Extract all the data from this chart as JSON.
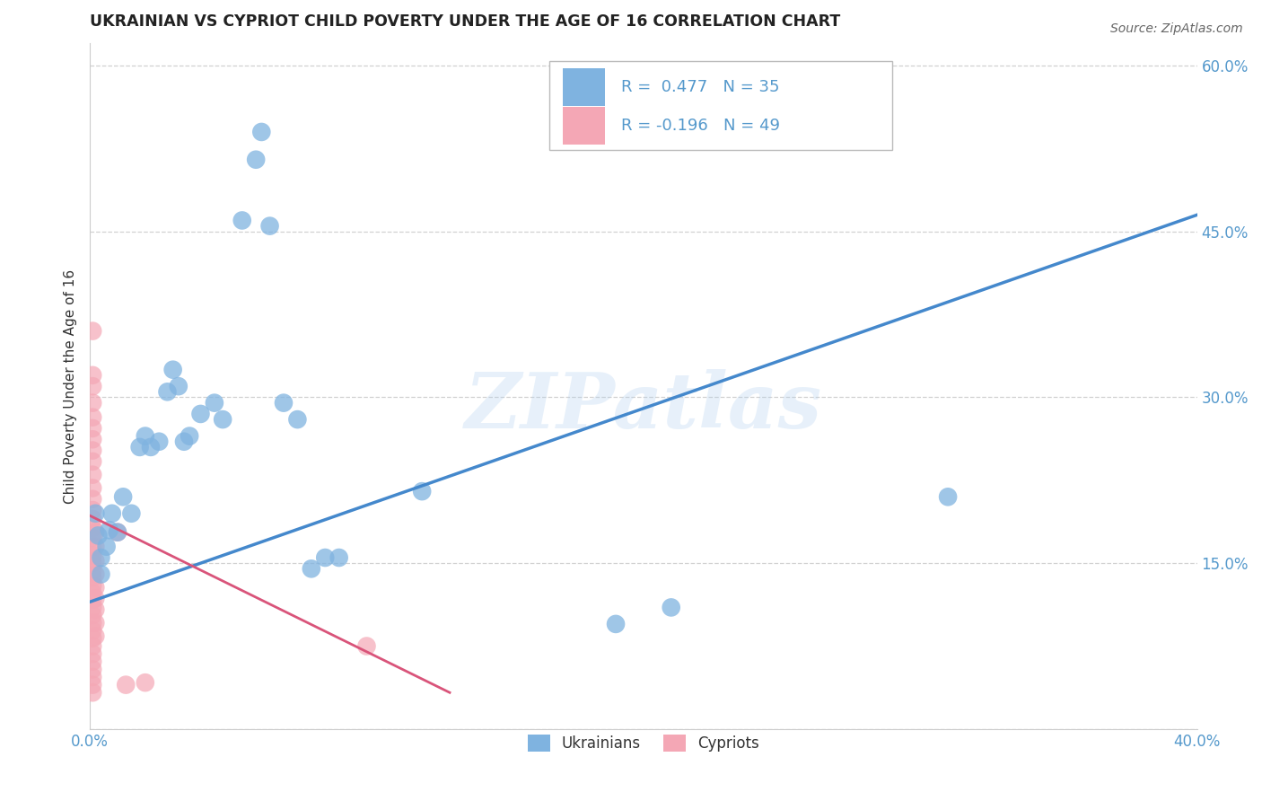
{
  "title": "UKRAINIAN VS CYPRIOT CHILD POVERTY UNDER THE AGE OF 16 CORRELATION CHART",
  "source": "Source: ZipAtlas.com",
  "ylabel": "Child Poverty Under the Age of 16",
  "xlim": [
    0.0,
    0.4
  ],
  "ylim": [
    0.0,
    0.62
  ],
  "x_ticks": [
    0.0,
    0.05,
    0.1,
    0.15,
    0.2,
    0.25,
    0.3,
    0.35,
    0.4
  ],
  "y_ticks": [
    0.0,
    0.15,
    0.3,
    0.45,
    0.6
  ],
  "grid_color": "#cccccc",
  "background_color": "#ffffff",
  "watermark": "ZIPatlas",
  "legend_line1": "R =  0.477   N = 35",
  "legend_line2": "R = -0.196   N = 49",
  "blue_color": "#7fb3e0",
  "pink_color": "#f4a7b5",
  "blue_line_color": "#4488cc",
  "pink_line_color": "#d9547a",
  "label_color": "#5599cc",
  "blue_scatter": [
    [
      0.002,
      0.195
    ],
    [
      0.003,
      0.175
    ],
    [
      0.004,
      0.155
    ],
    [
      0.004,
      0.14
    ],
    [
      0.006,
      0.165
    ],
    [
      0.007,
      0.18
    ],
    [
      0.008,
      0.195
    ],
    [
      0.01,
      0.178
    ],
    [
      0.012,
      0.21
    ],
    [
      0.015,
      0.195
    ],
    [
      0.018,
      0.255
    ],
    [
      0.02,
      0.265
    ],
    [
      0.022,
      0.255
    ],
    [
      0.025,
      0.26
    ],
    [
      0.028,
      0.305
    ],
    [
      0.03,
      0.325
    ],
    [
      0.032,
      0.31
    ],
    [
      0.034,
      0.26
    ],
    [
      0.036,
      0.265
    ],
    [
      0.04,
      0.285
    ],
    [
      0.045,
      0.295
    ],
    [
      0.048,
      0.28
    ],
    [
      0.055,
      0.46
    ],
    [
      0.06,
      0.515
    ],
    [
      0.062,
      0.54
    ],
    [
      0.065,
      0.455
    ],
    [
      0.07,
      0.295
    ],
    [
      0.075,
      0.28
    ],
    [
      0.08,
      0.145
    ],
    [
      0.085,
      0.155
    ],
    [
      0.09,
      0.155
    ],
    [
      0.12,
      0.215
    ],
    [
      0.19,
      0.095
    ],
    [
      0.21,
      0.11
    ],
    [
      0.31,
      0.21
    ]
  ],
  "pink_scatter": [
    [
      0.001,
      0.36
    ],
    [
      0.001,
      0.32
    ],
    [
      0.001,
      0.31
    ],
    [
      0.001,
      0.295
    ],
    [
      0.001,
      0.282
    ],
    [
      0.001,
      0.272
    ],
    [
      0.001,
      0.262
    ],
    [
      0.001,
      0.252
    ],
    [
      0.001,
      0.242
    ],
    [
      0.001,
      0.23
    ],
    [
      0.001,
      0.218
    ],
    [
      0.001,
      0.208
    ],
    [
      0.001,
      0.198
    ],
    [
      0.001,
      0.19
    ],
    [
      0.001,
      0.182
    ],
    [
      0.001,
      0.173
    ],
    [
      0.001,
      0.165
    ],
    [
      0.001,
      0.157
    ],
    [
      0.001,
      0.15
    ],
    [
      0.001,
      0.143
    ],
    [
      0.001,
      0.137
    ],
    [
      0.001,
      0.13
    ],
    [
      0.001,
      0.123
    ],
    [
      0.001,
      0.117
    ],
    [
      0.001,
      0.11
    ],
    [
      0.001,
      0.103
    ],
    [
      0.001,
      0.096
    ],
    [
      0.001,
      0.089
    ],
    [
      0.001,
      0.082
    ],
    [
      0.001,
      0.075
    ],
    [
      0.001,
      0.068
    ],
    [
      0.001,
      0.061
    ],
    [
      0.001,
      0.054
    ],
    [
      0.001,
      0.047
    ],
    [
      0.001,
      0.04
    ],
    [
      0.002,
      0.178
    ],
    [
      0.002,
      0.165
    ],
    [
      0.002,
      0.152
    ],
    [
      0.002,
      0.14
    ],
    [
      0.002,
      0.128
    ],
    [
      0.002,
      0.118
    ],
    [
      0.002,
      0.108
    ],
    [
      0.002,
      0.096
    ],
    [
      0.002,
      0.084
    ],
    [
      0.01,
      0.178
    ],
    [
      0.013,
      0.04
    ],
    [
      0.02,
      0.042
    ],
    [
      0.1,
      0.075
    ],
    [
      0.001,
      0.033
    ]
  ],
  "blue_trend_x": [
    0.0,
    0.4
  ],
  "blue_trend_y": [
    0.115,
    0.465
  ],
  "pink_trend_x": [
    0.0,
    0.13
  ],
  "pink_trend_y": [
    0.193,
    0.033
  ]
}
